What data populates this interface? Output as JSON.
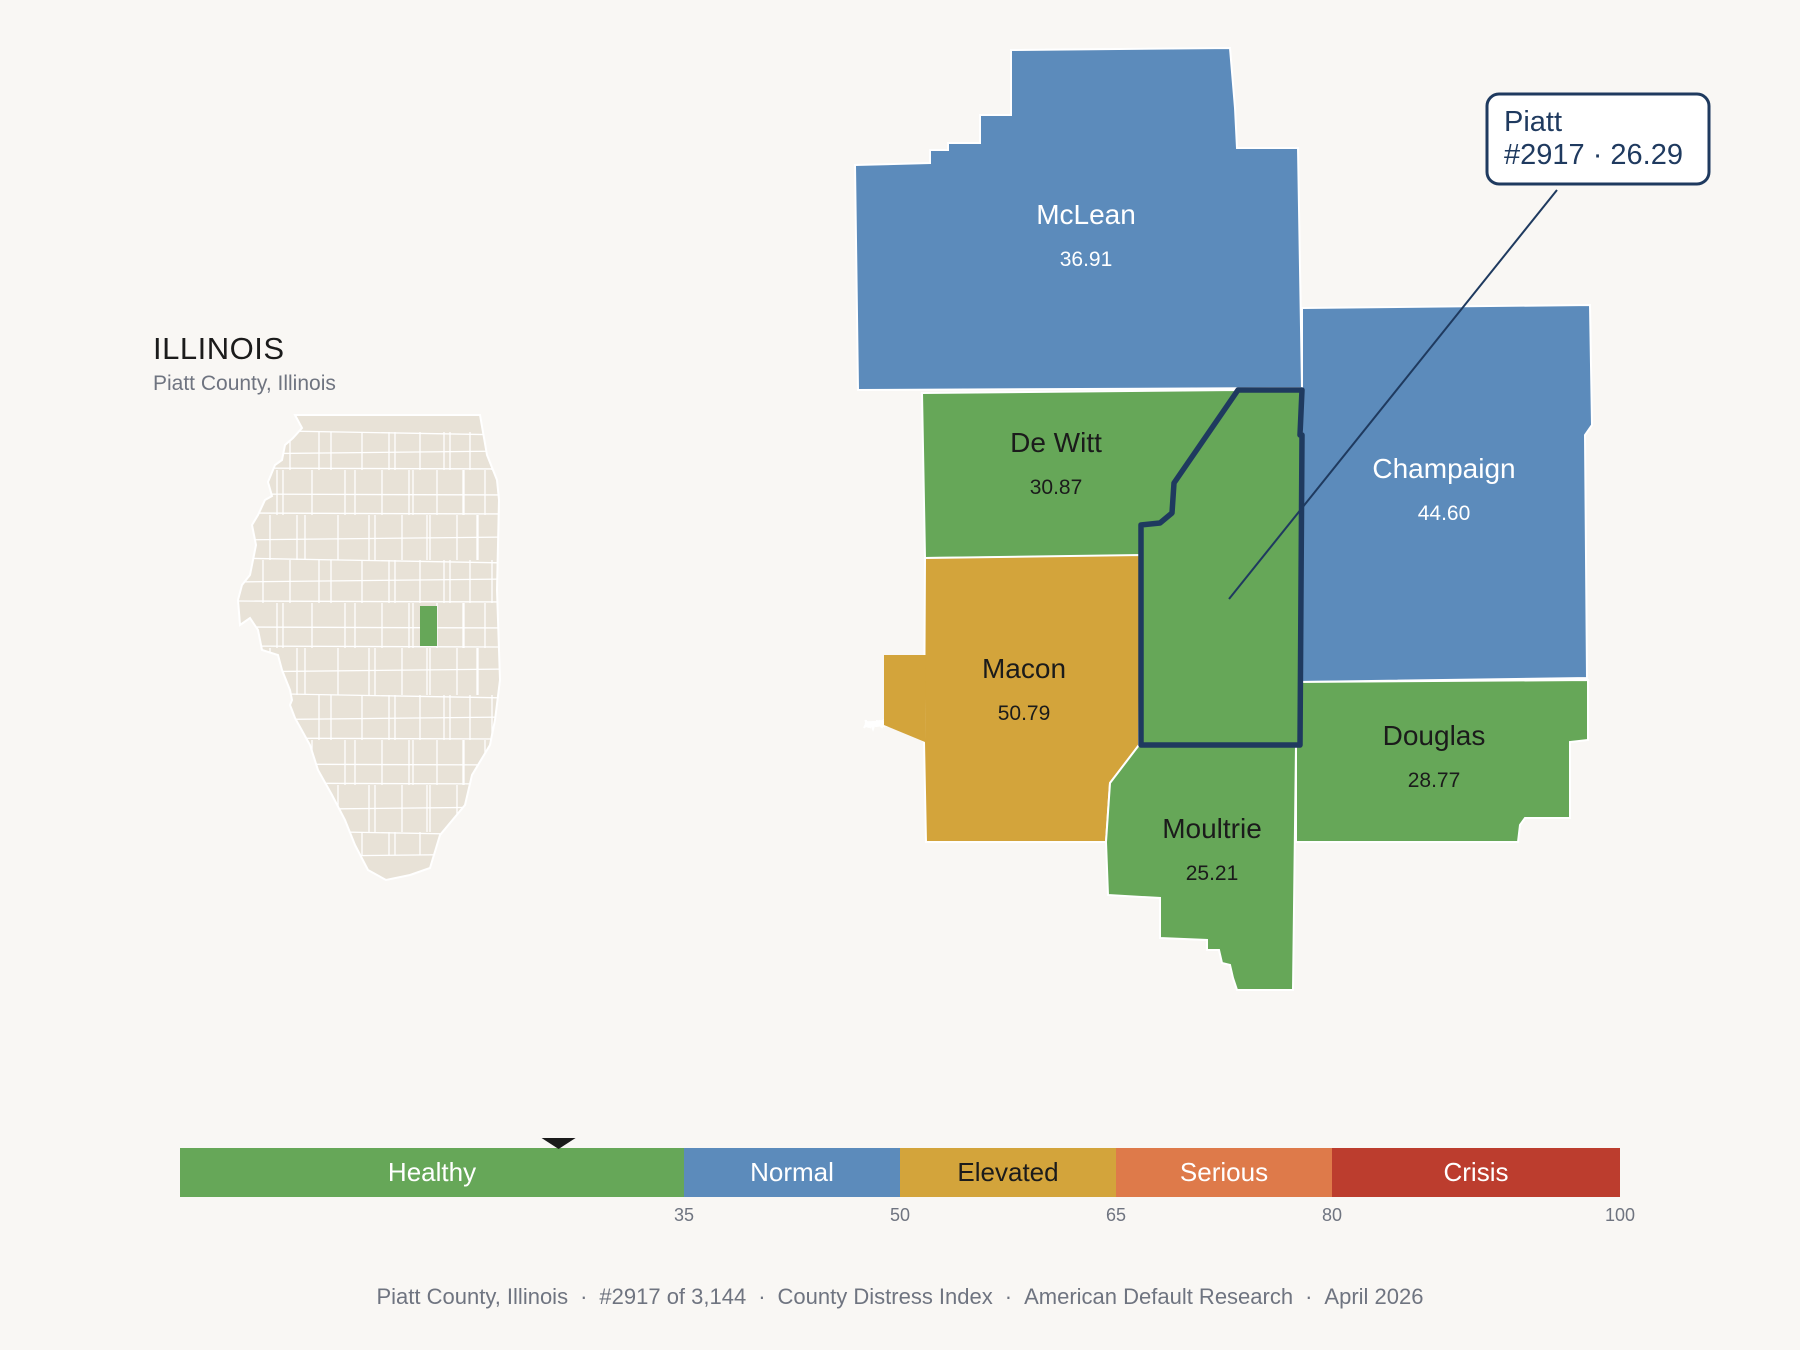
{
  "state": {
    "title": "ILLINOIS",
    "subtitle": "Piatt County, Illinois"
  },
  "colors": {
    "healthy": "#66a758",
    "normal": "#5c8bbb",
    "elevated": "#d3a43b",
    "serious": "#de7a4a",
    "crisis": "#bc3d2e",
    "inset": "#e8e2d7",
    "highlight_outline": "#1f3a5f"
  },
  "counties": [
    {
      "name": "McLean",
      "value": "36.91",
      "category": "normal"
    },
    {
      "name": "De Witt",
      "value": "30.87",
      "category": "healthy"
    },
    {
      "name": "Champaign",
      "value": "44.60",
      "category": "normal"
    },
    {
      "name": "Macon",
      "value": "50.79",
      "category": "elevated"
    },
    {
      "name": "Douglas",
      "value": "28.77",
      "category": "healthy"
    },
    {
      "name": "Moultrie",
      "value": "25.21",
      "category": "healthy"
    },
    {
      "name": "Piatt",
      "value": "26.29",
      "category": "healthy",
      "highlighted": true
    }
  ],
  "callout": {
    "line1": "Piatt",
    "line2": "#2917 · 26.29"
  },
  "legend": {
    "marker_value": 26.29,
    "segments": [
      {
        "label": "Healthy",
        "from": 0,
        "to": 35,
        "category": "healthy"
      },
      {
        "label": "Normal",
        "from": 35,
        "to": 50,
        "category": "normal"
      },
      {
        "label": "Elevated",
        "from": 50,
        "to": 65,
        "category": "elevated"
      },
      {
        "label": "Serious",
        "from": 65,
        "to": 80,
        "category": "serious"
      },
      {
        "label": "Crisis",
        "from": 80,
        "to": 100,
        "category": "crisis"
      }
    ],
    "ticks": [
      "35",
      "50",
      "65",
      "80",
      "100"
    ]
  },
  "footer": {
    "items": [
      "Piatt County, Illinois",
      "#2917 of 3,144",
      "County Distress Index",
      "American Default Research",
      "April 2026"
    ],
    "separator": "·"
  }
}
